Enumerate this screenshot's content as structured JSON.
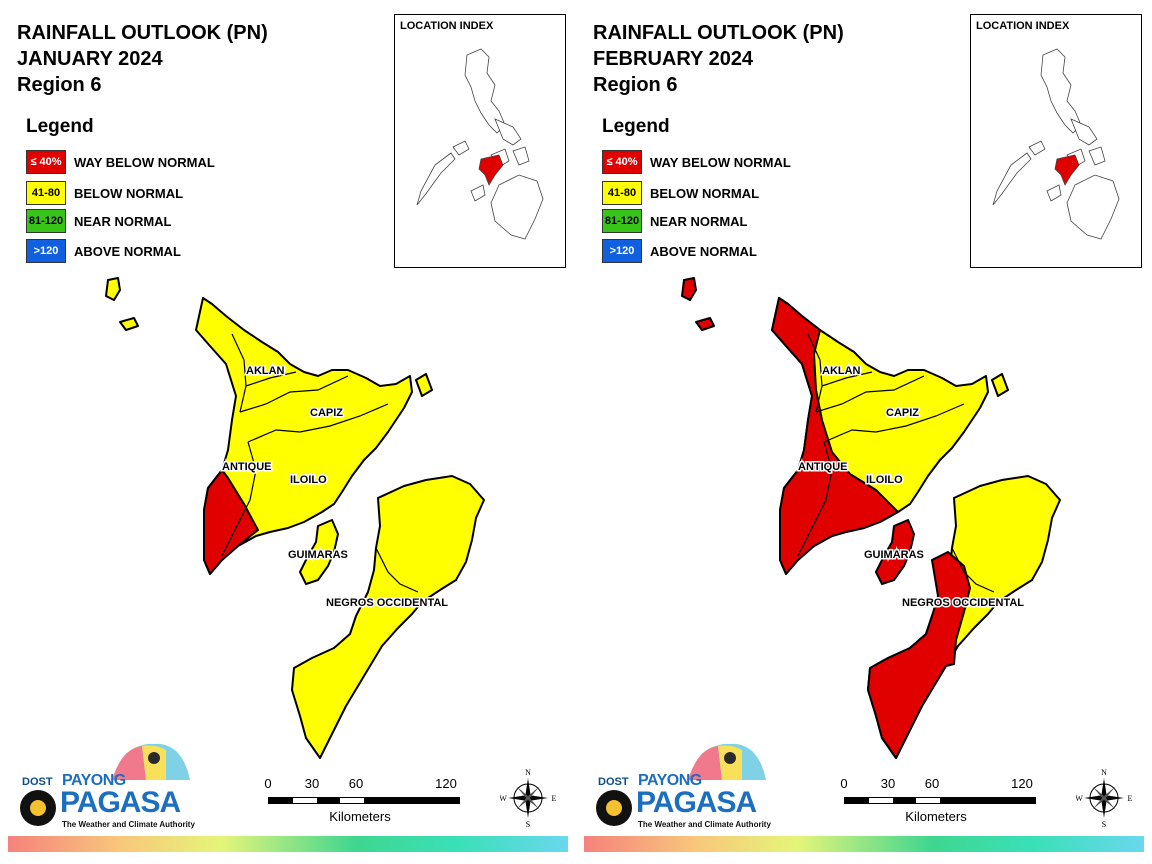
{
  "panels": [
    {
      "title": [
        "RAINFALL OUTLOOK (PN)",
        "JANUARY 2024",
        "Region 6"
      ],
      "index_title": "LOCATION INDEX",
      "provinces": [
        "AKLAN",
        "CAPIZ",
        "ANTIQUE",
        "ILOILO",
        "GUIMARAS",
        "NEGROS OCCIDENTAL"
      ],
      "category_by_province": {
        "AKLAN": "below",
        "CAPIZ": "below",
        "ILOILO": "below",
        "GUIMARAS": "below",
        "NEGROS OCCIDENTAL": "below",
        "ANTIQUE": "mostly below, southern tip way below"
      }
    },
    {
      "title": [
        "RAINFALL OUTLOOK (PN)",
        "FEBRUARY 2024",
        "Region 6"
      ],
      "index_title": "LOCATION INDEX",
      "provinces": [
        "AKLAN",
        "CAPIZ",
        "ANTIQUE",
        "ILOILO",
        "GUIMARAS",
        "NEGROS OCCIDENTAL"
      ],
      "category_by_province": {
        "AKLAN": "below",
        "CAPIZ": "below",
        "ANTIQUE": "way below",
        "ILOILO": "below north, way below south",
        "GUIMARAS": "way below",
        "NEGROS OCCIDENTAL": "way below west/south, below north-east"
      }
    }
  ],
  "legend": {
    "title": "Legend",
    "items": [
      {
        "code": "≤ 40%",
        "label": "WAY BELOW NORMAL",
        "color": "#e00000",
        "text_color": "#ffffff"
      },
      {
        "code": "41-80",
        "label": "BELOW NORMAL",
        "color": "#ffff00",
        "text_color": "#000000"
      },
      {
        "code": "81-120",
        "label": "NEAR NORMAL",
        "color": "#38c51a",
        "text_color": "#000000"
      },
      {
        "code": ">120",
        "label": "ABOVE NORMAL",
        "color": "#1160e0",
        "text_color": "#ffffff"
      }
    ]
  },
  "scale": {
    "ticks": [
      "0",
      "30",
      "60",
      "120"
    ],
    "unit": "Kilometers"
  },
  "compass": {
    "n": "N",
    "s": "S",
    "e": "E",
    "w": "W"
  },
  "logo": {
    "dost": "DOST",
    "payong": "PAYONG",
    "pagasa": "PAGASA",
    "tagline": "The Weather and Climate Authority"
  }
}
